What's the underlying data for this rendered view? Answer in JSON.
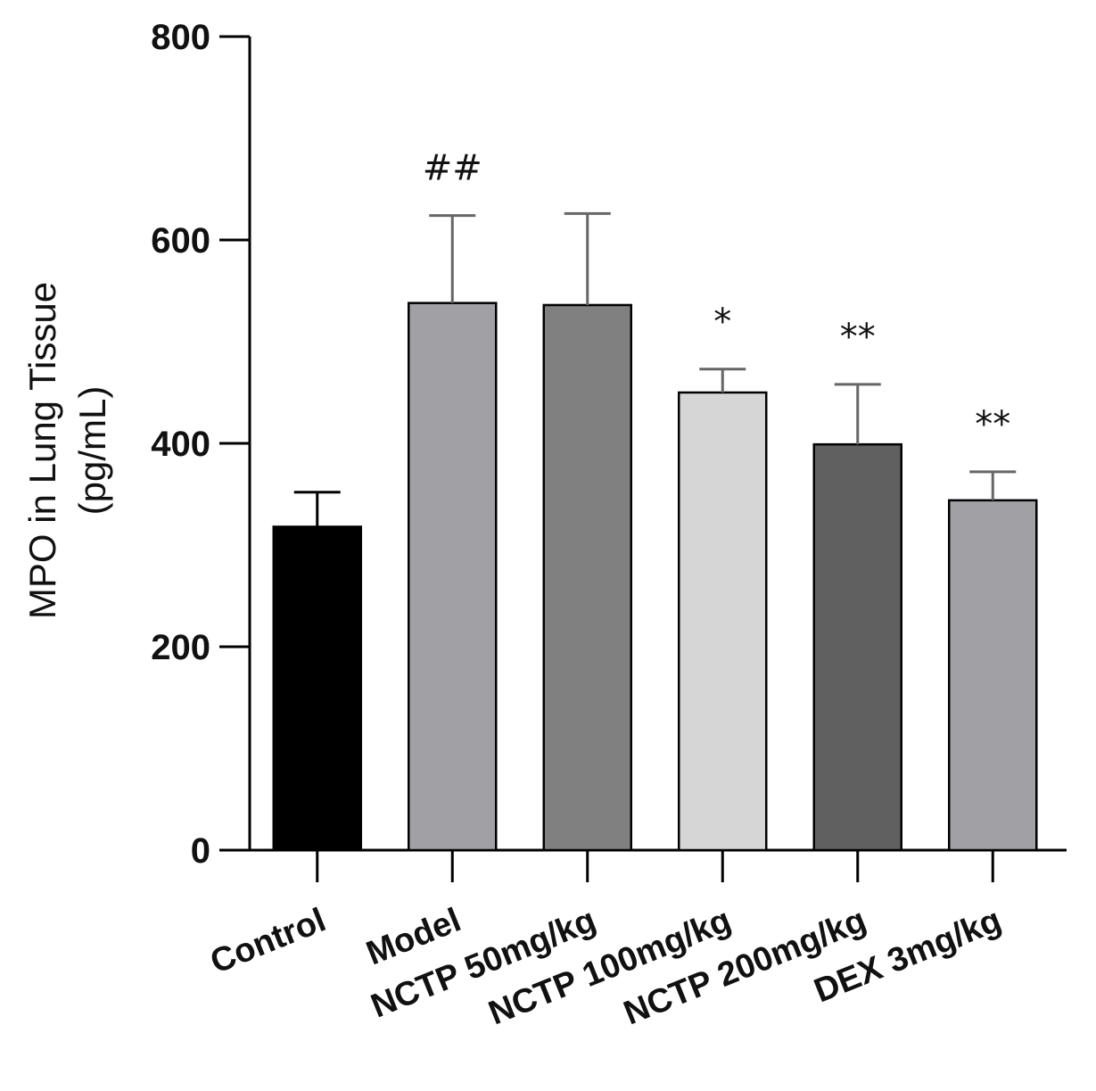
{
  "chart_data": {
    "type": "bar",
    "title": "",
    "xlabel": "",
    "ylabel": [
      "MPO in Lung Tissue",
      "(pg/mL)"
    ],
    "ylim": [
      0,
      800
    ],
    "yticks": [
      0,
      200,
      400,
      600,
      800
    ],
    "categories": [
      "Control",
      "Model",
      "NCTP 50mg/kg",
      "NCTP 100mg/kg",
      "NCTP 200mg/kg",
      "DEX 3mg/kg"
    ],
    "values": [
      318,
      538,
      536,
      450,
      399,
      344
    ],
    "errors": [
      34,
      86,
      90,
      23,
      59,
      28
    ],
    "colors": [
      "#000000",
      "#a1a1a5",
      "#808080",
      "#d6d6d6",
      "#606060",
      "#a1a1a5"
    ],
    "annotations": [
      "",
      "##",
      "",
      "*",
      "**",
      "**"
    ],
    "grid": false,
    "legend": "none"
  }
}
